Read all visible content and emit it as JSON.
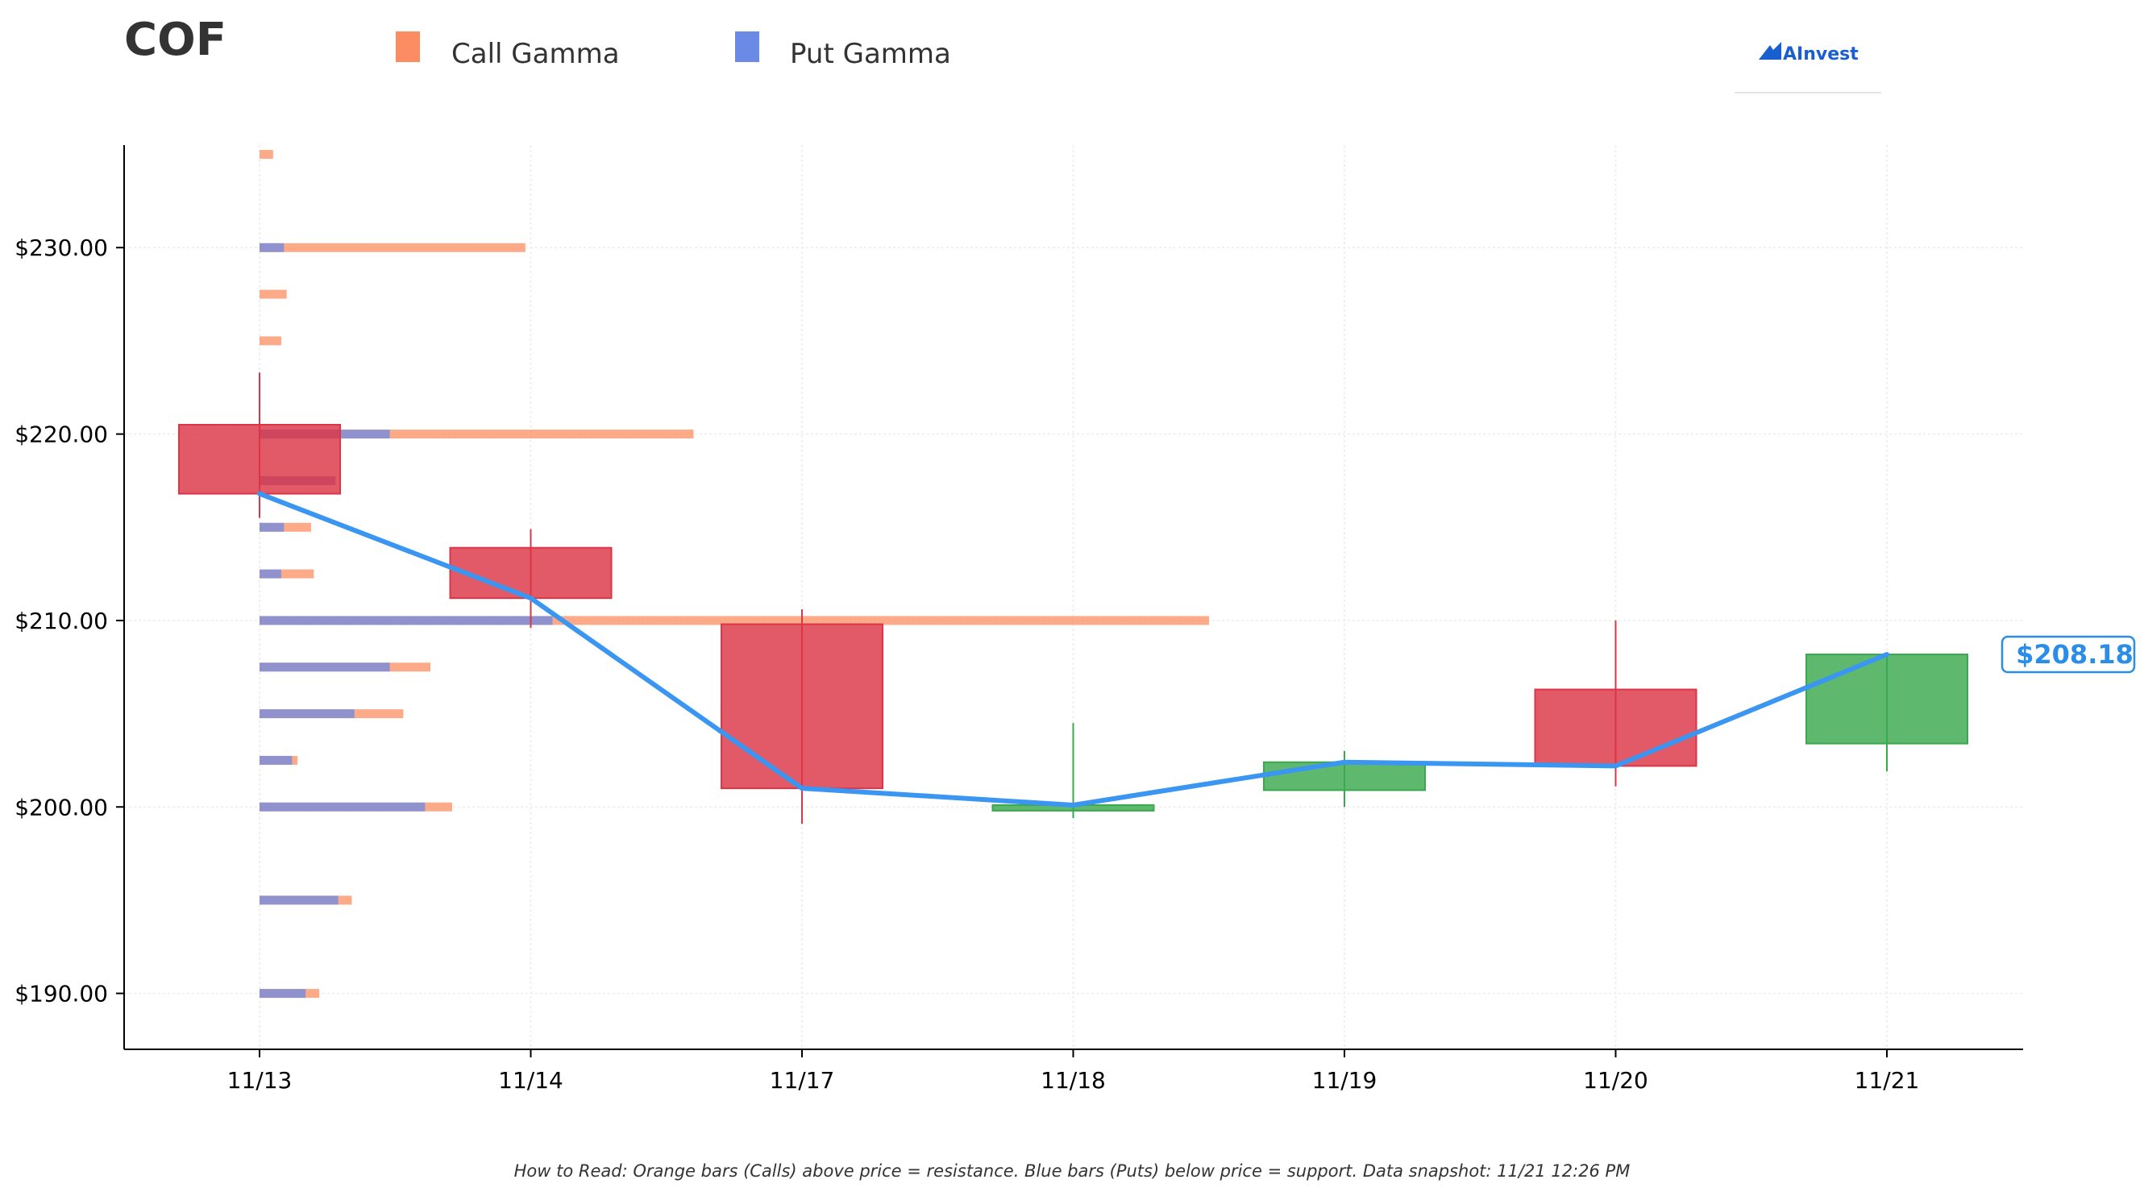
{
  "chart_data": {
    "type": "candlestick",
    "title": "COF",
    "legend": {
      "position": "top",
      "items": [
        {
          "label": "Call Gamma",
          "color": "#fc8d62"
        },
        {
          "label": "Put Gamma",
          "color": "#6b8ae6"
        }
      ]
    },
    "brand": "AInvest",
    "colors": {
      "up": "#3aa94e",
      "down": "#dc3545",
      "line": "#3a96f0",
      "call": "#fc8d62",
      "put": "#6b8ae6",
      "price_tag": "#2a8ee8"
    },
    "categories": [
      "11/13",
      "11/14",
      "11/17",
      "11/18",
      "11/19",
      "11/20",
      "11/21"
    ],
    "ohlc": [
      {
        "date": "11/13",
        "open": 220.5,
        "high": 223.3,
        "low": 215.5,
        "close": 216.8
      },
      {
        "date": "11/14",
        "open": 213.9,
        "high": 214.9,
        "low": 209.6,
        "close": 211.2
      },
      {
        "date": "11/17",
        "open": 209.8,
        "high": 210.6,
        "low": 199.1,
        "close": 201.0
      },
      {
        "date": "11/18",
        "open": 199.8,
        "high": 204.5,
        "low": 199.4,
        "close": 200.1
      },
      {
        "date": "11/19",
        "open": 200.9,
        "high": 203.0,
        "low": 200.0,
        "close": 202.4
      },
      {
        "date": "11/20",
        "open": 206.3,
        "high": 210.0,
        "low": 201.1,
        "close": 202.2
      },
      {
        "date": "11/21",
        "open": 203.4,
        "high": 208.2,
        "low": 201.9,
        "close": 208.18
      }
    ],
    "close_line": [
      216.8,
      211.2,
      201.0,
      200.1,
      202.4,
      202.2,
      208.18
    ],
    "last_price_label": "$208.18",
    "last_price": 208.18,
    "gamma_scale_max": 3.5,
    "gamma_by_strike": [
      {
        "strike": 235.0,
        "call": 0.05,
        "put": 0.0
      },
      {
        "strike": 230.0,
        "call": 0.98,
        "put": 0.09
      },
      {
        "strike": 227.5,
        "call": 0.1,
        "put": 0.0
      },
      {
        "strike": 225.0,
        "call": 0.08,
        "put": 0.0
      },
      {
        "strike": 220.0,
        "call": 1.6,
        "put": 0.48
      },
      {
        "strike": 217.5,
        "call": 0.28,
        "put": 0.28
      },
      {
        "strike": 215.0,
        "call": 0.19,
        "put": 0.09
      },
      {
        "strike": 212.5,
        "call": 0.2,
        "put": 0.08
      },
      {
        "strike": 210.0,
        "call": 3.5,
        "put": 1.08
      },
      {
        "strike": 207.5,
        "call": 0.63,
        "put": 0.48
      },
      {
        "strike": 205.0,
        "call": 0.53,
        "put": 0.35
      },
      {
        "strike": 202.5,
        "call": 0.14,
        "put": 0.12
      },
      {
        "strike": 200.0,
        "call": 0.71,
        "put": 0.61
      },
      {
        "strike": 195.0,
        "call": 0.34,
        "put": 0.29
      },
      {
        "strike": 190.0,
        "call": 0.22,
        "put": 0.17
      }
    ],
    "y_ticks": [
      {
        "value": 190,
        "label": "$190.00"
      },
      {
        "value": 200,
        "label": "$200.00"
      },
      {
        "value": 210,
        "label": "$210.00"
      },
      {
        "value": 220,
        "label": "$220.00"
      },
      {
        "value": 230,
        "label": "$230.00"
      }
    ],
    "ylim": [
      187,
      235.5
    ],
    "grid": true,
    "xlabel": "",
    "ylabel": "",
    "footnote": "How to Read: Orange bars (Calls) above price = resistance. Blue bars (Puts) below price = support. Data snapshot: 11/21 12:26 PM"
  }
}
